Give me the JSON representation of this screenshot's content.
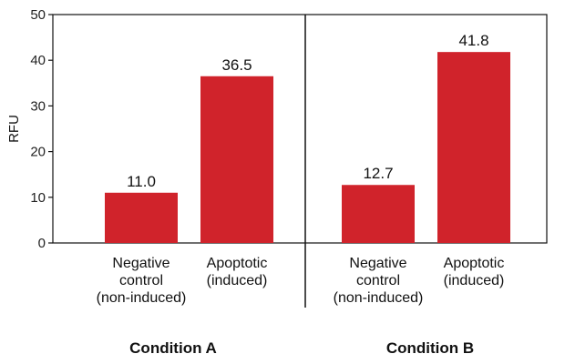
{
  "chart_data": {
    "type": "bar",
    "title": "",
    "ylabel": "RFU",
    "ylim": [
      0,
      50
    ],
    "yticks": [
      0,
      10,
      20,
      30,
      40,
      50
    ],
    "grid": false,
    "bar_color": "#d0232b",
    "groups": [
      {
        "name": "Condition A",
        "categories": [
          {
            "label_lines": [
              "Negative",
              "control",
              "(non-induced)"
            ],
            "value": 11.0,
            "value_label": "11.0"
          },
          {
            "label_lines": [
              "Apoptotic",
              "(induced)"
            ],
            "value": 36.5,
            "value_label": "36.5"
          }
        ]
      },
      {
        "name": "Condition B",
        "categories": [
          {
            "label_lines": [
              "Negative",
              "control",
              "(non-induced)"
            ],
            "value": 12.7,
            "value_label": "12.7"
          },
          {
            "label_lines": [
              "Apoptotic",
              "(induced)"
            ],
            "value": 41.8,
            "value_label": "41.8"
          }
        ]
      }
    ]
  }
}
